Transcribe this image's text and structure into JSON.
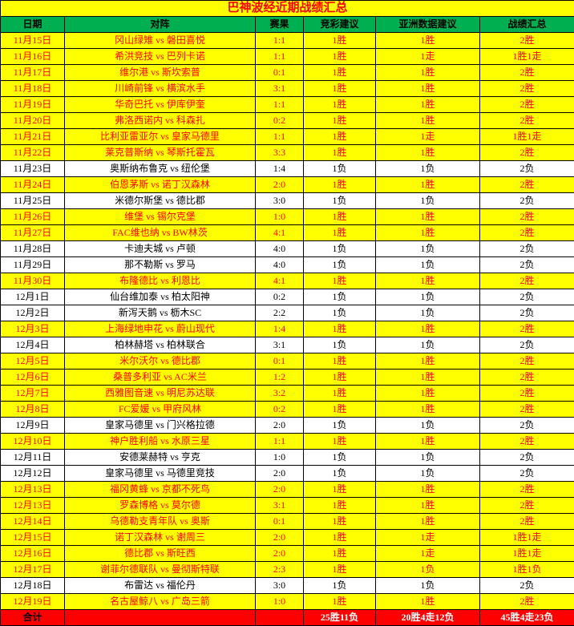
{
  "title": "巴神波经近期战绩汇总",
  "headers": [
    "日期",
    "对阵",
    "赛果",
    "竞彩建议",
    "亚洲数据建议",
    "战绩汇总"
  ],
  "totalLabel": "合计",
  "totals": [
    "",
    "",
    "25胜11负",
    "20胜4走12负",
    "45胜4走23负"
  ],
  "colors": {
    "yellow": "#ffff00",
    "green": "#00b050",
    "red": "#ff0000",
    "white": "#ffffff",
    "black": "#000000"
  },
  "rows": [
    {
      "c": "y",
      "d": "11月15日",
      "m": "冈山绿雉 vs 磐田喜悦",
      "s": "1:1",
      "a": "1胜",
      "b": "1胜",
      "t": "2胜"
    },
    {
      "c": "y",
      "d": "11月16日",
      "m": "希洪竞技 vs 巴列卡诺",
      "s": "1:1",
      "a": "1胜",
      "b": "1走",
      "t": "1胜1走"
    },
    {
      "c": "y",
      "d": "11月17日",
      "m": "维尔港 vs 斯坎索普",
      "s": "0:1",
      "a": "1胜",
      "b": "1胜",
      "t": "2胜"
    },
    {
      "c": "y",
      "d": "11月18日",
      "m": "川崎前锋 vs 横滨水手",
      "s": "3:1",
      "a": "1胜",
      "b": "1胜",
      "t": "2胜"
    },
    {
      "c": "y",
      "d": "11月19日",
      "m": "华奇巴托 vs 伊库伊奎",
      "s": "1:1",
      "a": "1胜",
      "b": "1胜",
      "t": "2胜"
    },
    {
      "c": "y",
      "d": "11月20日",
      "m": "弗洛西诺内 vs 科森扎",
      "s": "0:2",
      "a": "1胜",
      "b": "1胜",
      "t": "2胜"
    },
    {
      "c": "y",
      "d": "11月21日",
      "m": "比利亚雷亚尔 vs 皇家马德里",
      "s": "1:1",
      "a": "1胜",
      "b": "1走",
      "t": "1胜1走"
    },
    {
      "c": "y",
      "d": "11月22日",
      "m": "莱克普斯纳 vs 琴斯托霍瓦",
      "s": "3:3",
      "a": "1胜",
      "b": "1胜",
      "t": "2胜"
    },
    {
      "c": "w",
      "d": "11月23日",
      "m": "奥斯纳布鲁克 vs 纽伦堡",
      "s": "1:4",
      "a": "1负",
      "b": "1负",
      "t": "2负"
    },
    {
      "c": "y",
      "d": "11月24日",
      "m": "伯恩茅斯 vs 诺丁汉森林",
      "s": "2:0",
      "a": "1胜",
      "b": "1胜",
      "t": "2胜"
    },
    {
      "c": "w",
      "d": "11月25日",
      "m": "米德尔斯堡 vs 德比郡",
      "s": "3:0",
      "a": "1负",
      "b": "1负",
      "t": "2负"
    },
    {
      "c": "y",
      "d": "11月26日",
      "m": "维堡 vs 锡尔克堡",
      "s": "1:0",
      "a": "1胜",
      "b": "1胜",
      "t": "2胜"
    },
    {
      "c": "y",
      "d": "11月27日",
      "m": "FAC维也纳 vs BW林茨",
      "s": "4:1",
      "a": "1胜",
      "b": "1胜",
      "t": "2胜"
    },
    {
      "c": "w",
      "d": "11月28日",
      "m": "卡迪夫城 vs 卢顿",
      "s": "4:0",
      "a": "1负",
      "b": "1负",
      "t": "2负"
    },
    {
      "c": "w",
      "d": "11月29日",
      "m": "那不勒斯 vs 罗马",
      "s": "4:0",
      "a": "1负",
      "b": "1负",
      "t": "2负"
    },
    {
      "c": "y",
      "d": "11月30日",
      "m": "布隆德比 vs 利恩比",
      "s": "4:1",
      "a": "1胜",
      "b": "1胜",
      "t": "2胜"
    },
    {
      "c": "w",
      "d": "12月1日",
      "m": "仙台维加泰 vs 柏太阳神",
      "s": "0:2",
      "a": "1负",
      "b": "1负",
      "t": "2负"
    },
    {
      "c": "w",
      "d": "12月2日",
      "m": "新泻天鹅 vs 枥木SC",
      "s": "2:2",
      "a": "1负",
      "b": "1负",
      "t": "2负"
    },
    {
      "c": "y",
      "d": "12月3日",
      "m": "上海绿地申花 vs 蔚山现代",
      "s": "1:4",
      "a": "1胜",
      "b": "1胜",
      "t": "2胜"
    },
    {
      "c": "w",
      "d": "12月4日",
      "m": "柏林赫塔 vs 柏林联合",
      "s": "3:1",
      "a": "1负",
      "b": "1负",
      "t": "2负"
    },
    {
      "c": "y",
      "d": "12月5日",
      "m": "米尔沃尔 vs 德比郡",
      "s": "0:1",
      "a": "1胜",
      "b": "1胜",
      "t": "2胜"
    },
    {
      "c": "y",
      "d": "12月6日",
      "m": "桑普多利亚 vs AC米兰",
      "s": "1:2",
      "a": "1胜",
      "b": "1胜",
      "t": "2胜"
    },
    {
      "c": "y",
      "d": "12月7日",
      "m": "西雅图音速 vs 明尼苏达联",
      "s": "3:2",
      "a": "1胜",
      "b": "1胜",
      "t": "2胜"
    },
    {
      "c": "y",
      "d": "12月8日",
      "m": "FC爱媛 vs 甲府风林",
      "s": "0:2",
      "a": "1胜",
      "b": "1胜",
      "t": "2胜"
    },
    {
      "c": "w",
      "d": "12月9日",
      "m": "皇家马德里 vs 门兴格拉德",
      "s": "2:0",
      "a": "1负",
      "b": "1负",
      "t": "2负"
    },
    {
      "c": "y",
      "d": "12月10日",
      "m": "神户胜利船 vs 水原三星",
      "s": "1:1",
      "a": "1胜",
      "b": "1胜",
      "t": "2胜"
    },
    {
      "c": "w",
      "d": "12月11日",
      "m": "安德莱赫特 vs 亨克",
      "s": "1:0",
      "a": "1负",
      "b": "1负",
      "t": "2负"
    },
    {
      "c": "w",
      "d": "12月12日",
      "m": "皇家马德里 vs 马德里竞技",
      "s": "2:0",
      "a": "1负",
      "b": "1负",
      "t": "2负"
    },
    {
      "c": "y",
      "d": "12月13日",
      "m": "福冈黄蜂 vs 京都不死鸟",
      "s": "2:0",
      "a": "1胜",
      "b": "1胜",
      "t": "2胜"
    },
    {
      "c": "y",
      "d": "12月13日",
      "m": "罗森博格 vs 莫尔德",
      "s": "3:1",
      "a": "1胜",
      "b": "1胜",
      "t": "2胜"
    },
    {
      "c": "y",
      "d": "12月14日",
      "m": "乌德勒支青年队 vs 奥斯",
      "s": "0:1",
      "a": "1胜",
      "b": "1胜",
      "t": "2胜"
    },
    {
      "c": "y",
      "d": "12月15日",
      "m": "诺丁汉森林 vs 谢周三",
      "s": "2:0",
      "a": "1胜",
      "b": "1走",
      "t": "1胜1走"
    },
    {
      "c": "y",
      "d": "12月16日",
      "m": "德比郡 vs 斯旺西",
      "s": "2:0",
      "a": "1胜",
      "b": "1走",
      "t": "1胜1走"
    },
    {
      "c": "y",
      "d": "12月17日",
      "m": "谢菲尔德联队 vs 曼彻斯特联",
      "s": "2:3",
      "a": "1胜",
      "b": "1负",
      "t": "1胜1负"
    },
    {
      "c": "w",
      "d": "12月18日",
      "m": "布雷达 vs 福伦丹",
      "s": "3:0",
      "a": "1负",
      "b": "1负",
      "t": "2负"
    },
    {
      "c": "y",
      "d": "12月19日",
      "m": "名古屋鲸八 vs 广岛三箭",
      "s": "1:0",
      "a": "1胜",
      "b": "1胜",
      "t": "2胜"
    }
  ]
}
